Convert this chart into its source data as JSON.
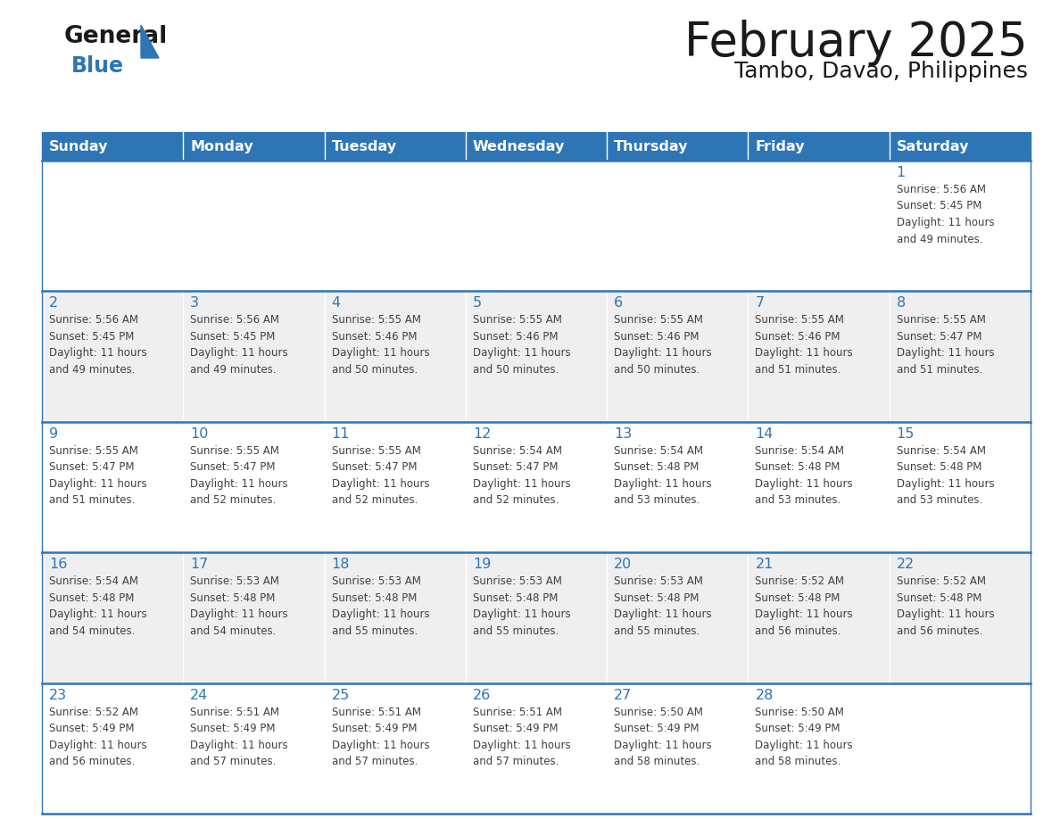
{
  "title": "February 2025",
  "subtitle": "Tambo, Davao, Philippines",
  "days_of_week": [
    "Sunday",
    "Monday",
    "Tuesday",
    "Wednesday",
    "Thursday",
    "Friday",
    "Saturday"
  ],
  "header_bg": "#2E75B6",
  "header_text": "#FFFFFF",
  "row_colors": [
    "#FFFFFF",
    "#EFEFEF",
    "#FFFFFF",
    "#EFEFEF",
    "#FFFFFF"
  ],
  "cell_border": "#2E75B6",
  "day_number_color": "#2E75B6",
  "info_text_color": "#404040",
  "title_color": "#1a1a1a",
  "logo_black": "#1a1a1a",
  "logo_blue": "#2E75B6",
  "calendar_data": [
    [
      null,
      null,
      null,
      null,
      null,
      null,
      {
        "day": 1,
        "sunrise": "5:56 AM",
        "sunset": "5:45 PM",
        "daylight": "11 hours\nand 49 minutes."
      }
    ],
    [
      {
        "day": 2,
        "sunrise": "5:56 AM",
        "sunset": "5:45 PM",
        "daylight": "11 hours\nand 49 minutes."
      },
      {
        "day": 3,
        "sunrise": "5:56 AM",
        "sunset": "5:45 PM",
        "daylight": "11 hours\nand 49 minutes."
      },
      {
        "day": 4,
        "sunrise": "5:55 AM",
        "sunset": "5:46 PM",
        "daylight": "11 hours\nand 50 minutes."
      },
      {
        "day": 5,
        "sunrise": "5:55 AM",
        "sunset": "5:46 PM",
        "daylight": "11 hours\nand 50 minutes."
      },
      {
        "day": 6,
        "sunrise": "5:55 AM",
        "sunset": "5:46 PM",
        "daylight": "11 hours\nand 50 minutes."
      },
      {
        "day": 7,
        "sunrise": "5:55 AM",
        "sunset": "5:46 PM",
        "daylight": "11 hours\nand 51 minutes."
      },
      {
        "day": 8,
        "sunrise": "5:55 AM",
        "sunset": "5:47 PM",
        "daylight": "11 hours\nand 51 minutes."
      }
    ],
    [
      {
        "day": 9,
        "sunrise": "5:55 AM",
        "sunset": "5:47 PM",
        "daylight": "11 hours\nand 51 minutes."
      },
      {
        "day": 10,
        "sunrise": "5:55 AM",
        "sunset": "5:47 PM",
        "daylight": "11 hours\nand 52 minutes."
      },
      {
        "day": 11,
        "sunrise": "5:55 AM",
        "sunset": "5:47 PM",
        "daylight": "11 hours\nand 52 minutes."
      },
      {
        "day": 12,
        "sunrise": "5:54 AM",
        "sunset": "5:47 PM",
        "daylight": "11 hours\nand 52 minutes."
      },
      {
        "day": 13,
        "sunrise": "5:54 AM",
        "sunset": "5:48 PM",
        "daylight": "11 hours\nand 53 minutes."
      },
      {
        "day": 14,
        "sunrise": "5:54 AM",
        "sunset": "5:48 PM",
        "daylight": "11 hours\nand 53 minutes."
      },
      {
        "day": 15,
        "sunrise": "5:54 AM",
        "sunset": "5:48 PM",
        "daylight": "11 hours\nand 53 minutes."
      }
    ],
    [
      {
        "day": 16,
        "sunrise": "5:54 AM",
        "sunset": "5:48 PM",
        "daylight": "11 hours\nand 54 minutes."
      },
      {
        "day": 17,
        "sunrise": "5:53 AM",
        "sunset": "5:48 PM",
        "daylight": "11 hours\nand 54 minutes."
      },
      {
        "day": 18,
        "sunrise": "5:53 AM",
        "sunset": "5:48 PM",
        "daylight": "11 hours\nand 55 minutes."
      },
      {
        "day": 19,
        "sunrise": "5:53 AM",
        "sunset": "5:48 PM",
        "daylight": "11 hours\nand 55 minutes."
      },
      {
        "day": 20,
        "sunrise": "5:53 AM",
        "sunset": "5:48 PM",
        "daylight": "11 hours\nand 55 minutes."
      },
      {
        "day": 21,
        "sunrise": "5:52 AM",
        "sunset": "5:48 PM",
        "daylight": "11 hours\nand 56 minutes."
      },
      {
        "day": 22,
        "sunrise": "5:52 AM",
        "sunset": "5:48 PM",
        "daylight": "11 hours\nand 56 minutes."
      }
    ],
    [
      {
        "day": 23,
        "sunrise": "5:52 AM",
        "sunset": "5:49 PM",
        "daylight": "11 hours\nand 56 minutes."
      },
      {
        "day": 24,
        "sunrise": "5:51 AM",
        "sunset": "5:49 PM",
        "daylight": "11 hours\nand 57 minutes."
      },
      {
        "day": 25,
        "sunrise": "5:51 AM",
        "sunset": "5:49 PM",
        "daylight": "11 hours\nand 57 minutes."
      },
      {
        "day": 26,
        "sunrise": "5:51 AM",
        "sunset": "5:49 PM",
        "daylight": "11 hours\nand 57 minutes."
      },
      {
        "day": 27,
        "sunrise": "5:50 AM",
        "sunset": "5:49 PM",
        "daylight": "11 hours\nand 58 minutes."
      },
      {
        "day": 28,
        "sunrise": "5:50 AM",
        "sunset": "5:49 PM",
        "daylight": "11 hours\nand 58 minutes."
      },
      null
    ]
  ],
  "figsize": [
    11.88,
    9.18
  ],
  "dpi": 100
}
